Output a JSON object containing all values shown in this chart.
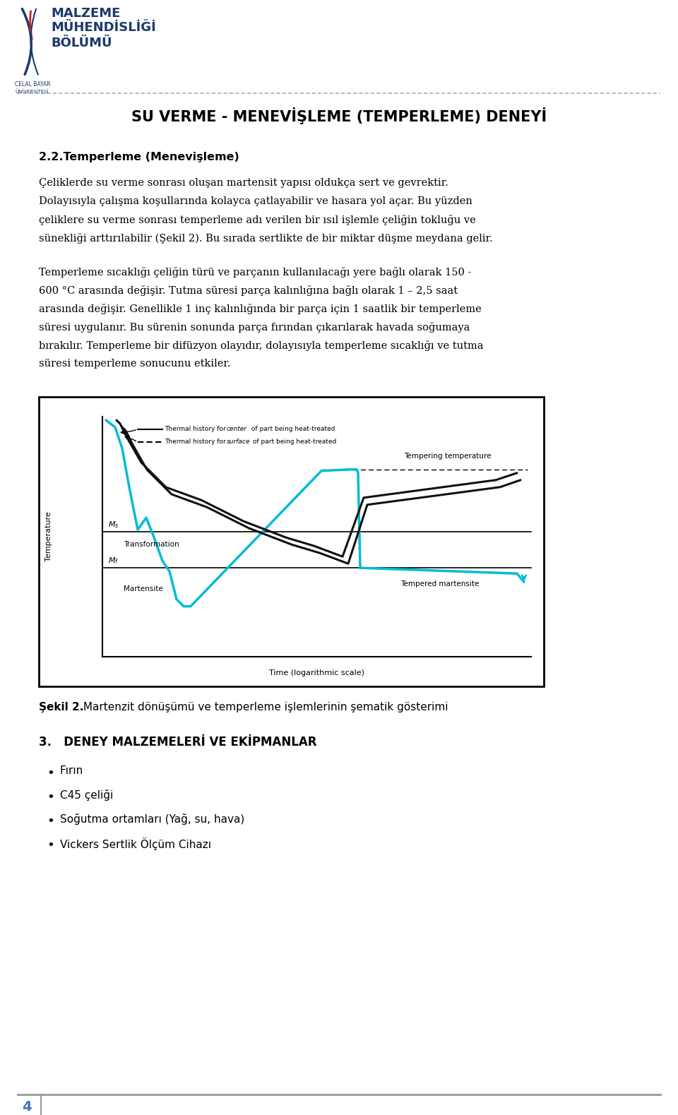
{
  "page_width": 9.6,
  "page_height": 15.79,
  "bg_color": "#ffffff",
  "logo_text1": "MALZEME",
  "logo_text2": "MÜHENDİSLİĞİ",
  "logo_text3": "BÖLÜMÜ",
  "logo_sub1": "CELAL BAYAR",
  "logo_sub2": "ÜNİVERSİTESİ",
  "logo_color": "#1a3a6b",
  "sep_color": "#aaaaaa",
  "title": "SU VERME - MENEVİŞLEME (TEMPERLEME) DENEYİ",
  "sec22": "2.2.Temperleme (Menevişleme)",
  "p1_lines": [
    "Çeliklerde su verme sonrası oluşan martensit yapısı oldukça sert ve gevrektir.",
    "Dolayısıyla çalışma koşullarında kolayca çatlayabilir ve hasara yol açar. Bu yüzden",
    "çeliklere su verme sonrası temperleme adı verilen bir ısıl işlemle çeliğin tokluğu ve",
    "sünekliği arttırılabilir (Şekil 2). Bu sırada sertlikte de bir miktar düşme meydana gelir."
  ],
  "p2_lines": [
    "Temperleme sıcaklığı çeliğin türü ve parçanın kullanılacağı yere bağlı olarak 150 -",
    "600 °C arasında değişir. Tutma süresi parça kalınlığına bağlı olarak 1 – 2,5 saat",
    "arasında değişir. Genellikle 1 inç kalınlığında bir parça için 1 saatlik bir temperleme",
    "süresi uygulanır. Bu sürenin sonunda parça fırından çıkarılarak havada soğumaya",
    "bırakılır. Temperleme bir difüzyon olayıdır, dolayısıyla temperleme sıcaklığı ve tutma",
    "süresi temperleme sonucunu etkiler."
  ],
  "caption_bold": "Şekil 2.",
  "caption_rest": " Martenzit dönüşümü ve temperleme işlemlerinin şematik gösterimi",
  "sec3": "3.   DENEY MALZEMELERİ VE EKİPMANLAR",
  "bullets": [
    "Fırın",
    "C45 çeliği",
    "Soğutma ortamları (Yağ, su, hava)",
    "Vickers Sertlik Ölçüm Cihazı"
  ],
  "footer_num": "4",
  "footer_color": "#4472C4",
  "cyan_color": "#00bcd4",
  "black_curve_color": "#111111"
}
